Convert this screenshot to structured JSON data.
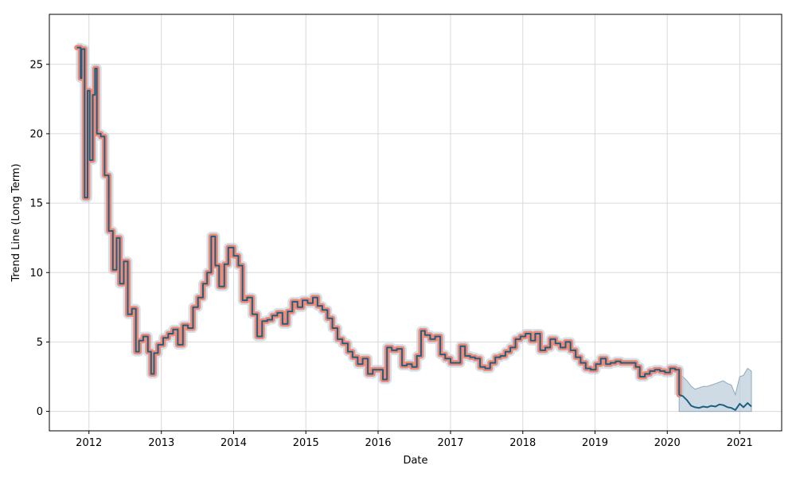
{
  "chart_data": {
    "type": "line",
    "title": "",
    "xlabel": "Date",
    "ylabel": "Trend Line (Long Term)",
    "xlim": [
      "2011-06-15",
      "2021-08-01"
    ],
    "ylim": [
      -1.4,
      28.6
    ],
    "grid": true,
    "x_ticks": [
      "2012-01-01",
      "2013-01-01",
      "2014-01-01",
      "2015-01-01",
      "2016-01-01",
      "2017-01-01",
      "2018-01-01",
      "2019-01-01",
      "2020-01-01",
      "2021-01-01"
    ],
    "x_tick_labels": [
      "2012",
      "2013",
      "2014",
      "2015",
      "2016",
      "2017",
      "2018",
      "2019",
      "2020",
      "2021"
    ],
    "y_ticks": [
      0,
      5,
      10,
      15,
      20,
      25
    ],
    "y_tick_labels": [
      "0",
      "5",
      "10",
      "15",
      "20",
      "25"
    ],
    "colors": {
      "trend_line": "#1f5f7f",
      "observed_highlight": "#f08a78",
      "uncertainty_band": "#b9ccd9",
      "grid": "#d9d9d9"
    },
    "series": [
      {
        "role": "observed",
        "x": [
          "2011-11-01",
          "2011-11-20",
          "2011-11-25",
          "2011-12-10",
          "2011-12-25",
          "2012-01-05",
          "2012-01-20",
          "2012-02-01",
          "2012-02-10",
          "2012-03-01",
          "2012-03-20",
          "2012-04-10",
          "2012-05-01",
          "2012-05-20",
          "2012-06-05",
          "2012-06-25",
          "2012-07-15",
          "2012-08-05",
          "2012-08-25",
          "2012-09-10",
          "2012-10-01",
          "2012-10-25",
          "2012-11-10",
          "2012-11-25",
          "2012-12-15",
          "2013-01-10",
          "2013-02-05",
          "2013-03-01",
          "2013-03-25",
          "2013-04-20",
          "2013-05-15",
          "2013-06-10",
          "2013-07-05",
          "2013-07-30",
          "2013-08-20",
          "2013-09-10",
          "2013-09-30",
          "2013-10-20",
          "2013-11-15",
          "2013-12-05",
          "2014-01-01",
          "2014-01-25",
          "2014-02-15",
          "2014-03-10",
          "2014-04-05",
          "2014-04-30",
          "2014-05-25",
          "2014-06-20",
          "2014-07-15",
          "2014-08-10",
          "2014-09-05",
          "2014-10-01",
          "2014-10-25",
          "2014-11-20",
          "2014-12-15",
          "2015-01-10",
          "2015-02-05",
          "2015-03-01",
          "2015-03-25",
          "2015-04-20",
          "2015-05-15",
          "2015-06-10",
          "2015-07-05",
          "2015-08-01",
          "2015-08-25",
          "2015-09-20",
          "2015-10-15",
          "2015-11-10",
          "2015-12-05",
          "2016-01-01",
          "2016-01-25",
          "2016-02-15",
          "2016-03-10",
          "2016-04-05",
          "2016-05-01",
          "2016-05-25",
          "2016-06-20",
          "2016-07-15",
          "2016-08-05",
          "2016-08-25",
          "2016-09-20",
          "2016-10-15",
          "2016-11-10",
          "2016-12-05",
          "2017-01-01",
          "2017-01-25",
          "2017-02-20",
          "2017-03-15",
          "2017-04-10",
          "2017-05-05",
          "2017-05-30",
          "2017-06-25",
          "2017-07-20",
          "2017-08-15",
          "2017-09-10",
          "2017-10-05",
          "2017-10-30",
          "2017-11-25",
          "2017-12-20",
          "2018-01-15",
          "2018-02-10",
          "2018-03-05",
          "2018-03-30",
          "2018-04-25",
          "2018-05-20",
          "2018-06-15",
          "2018-07-10",
          "2018-08-05",
          "2018-08-30",
          "2018-09-25",
          "2018-10-20",
          "2018-11-15",
          "2018-12-10",
          "2019-01-05",
          "2019-01-30",
          "2019-02-25",
          "2019-03-20",
          "2019-04-15",
          "2019-05-10",
          "2019-06-05",
          "2019-06-30",
          "2019-07-25",
          "2019-08-15",
          "2019-09-10",
          "2019-10-05",
          "2019-10-30",
          "2019-11-25",
          "2019-12-20",
          "2020-01-15",
          "2020-02-10",
          "2020-03-01"
        ],
        "y": [
          26.2,
          24.0,
          26.1,
          15.4,
          23.1,
          18.1,
          22.8,
          24.7,
          20.0,
          19.8,
          17.0,
          13.0,
          10.2,
          12.5,
          9.2,
          10.8,
          7.0,
          7.4,
          4.3,
          5.1,
          5.4,
          4.3,
          2.7,
          4.2,
          4.8,
          5.3,
          5.6,
          5.9,
          4.8,
          6.2,
          6.0,
          7.5,
          8.2,
          9.2,
          10.0,
          12.6,
          10.5,
          9.0,
          10.6,
          11.8,
          11.2,
          10.5,
          8.0,
          8.2,
          7.0,
          5.4,
          6.5,
          6.6,
          6.9,
          7.1,
          6.3,
          7.2,
          7.9,
          7.5,
          8.0,
          7.8,
          8.2,
          7.6,
          7.3,
          6.7,
          6.0,
          5.2,
          4.9,
          4.3,
          3.9,
          3.4,
          3.8,
          2.7,
          3.0,
          3.0,
          2.3,
          4.6,
          4.4,
          4.5,
          3.3,
          3.4,
          3.2,
          4.0,
          5.8,
          5.5,
          5.2,
          5.4,
          4.1,
          3.8,
          3.5,
          3.5,
          4.7,
          4.0,
          3.9,
          3.8,
          3.2,
          3.1,
          3.5,
          3.9,
          4.0,
          4.3,
          4.6,
          5.2,
          5.4,
          5.6,
          5.1,
          5.6,
          4.4,
          4.6,
          5.2,
          4.9,
          4.6,
          5.0,
          4.4,
          3.9,
          3.5,
          3.1,
          3.0,
          3.4,
          3.8,
          3.4,
          3.5,
          3.6,
          3.5,
          3.5,
          3.5,
          3.2,
          2.5,
          2.7,
          2.9,
          3.0,
          2.9,
          2.8,
          3.1,
          3.0,
          1.2
        ]
      },
      {
        "role": "forecast",
        "x": [
          "2020-03-01",
          "2020-03-20",
          "2020-04-10",
          "2020-05-01",
          "2020-05-20",
          "2020-06-10",
          "2020-07-01",
          "2020-07-20",
          "2020-08-10",
          "2020-09-01",
          "2020-09-20",
          "2020-10-10",
          "2020-11-01",
          "2020-11-20",
          "2020-12-10",
          "2021-01-01",
          "2021-01-20",
          "2021-02-10",
          "2021-03-01"
        ],
        "y": [
          1.2,
          1.1,
          0.8,
          0.4,
          0.3,
          0.25,
          0.35,
          0.3,
          0.4,
          0.35,
          0.5,
          0.45,
          0.3,
          0.25,
          0.1,
          0.55,
          0.3,
          0.6,
          0.35
        ],
        "lower": [
          0,
          0,
          0,
          0,
          0,
          0,
          0,
          0,
          0,
          0,
          0,
          0,
          0,
          0,
          0,
          0,
          0,
          0,
          0
        ],
        "upper": [
          2.6,
          2.5,
          2.2,
          1.8,
          1.6,
          1.7,
          1.8,
          1.8,
          1.9,
          2.0,
          2.1,
          2.2,
          2.0,
          1.9,
          1.2,
          2.5,
          2.6,
          3.1,
          2.9
        ]
      }
    ]
  }
}
